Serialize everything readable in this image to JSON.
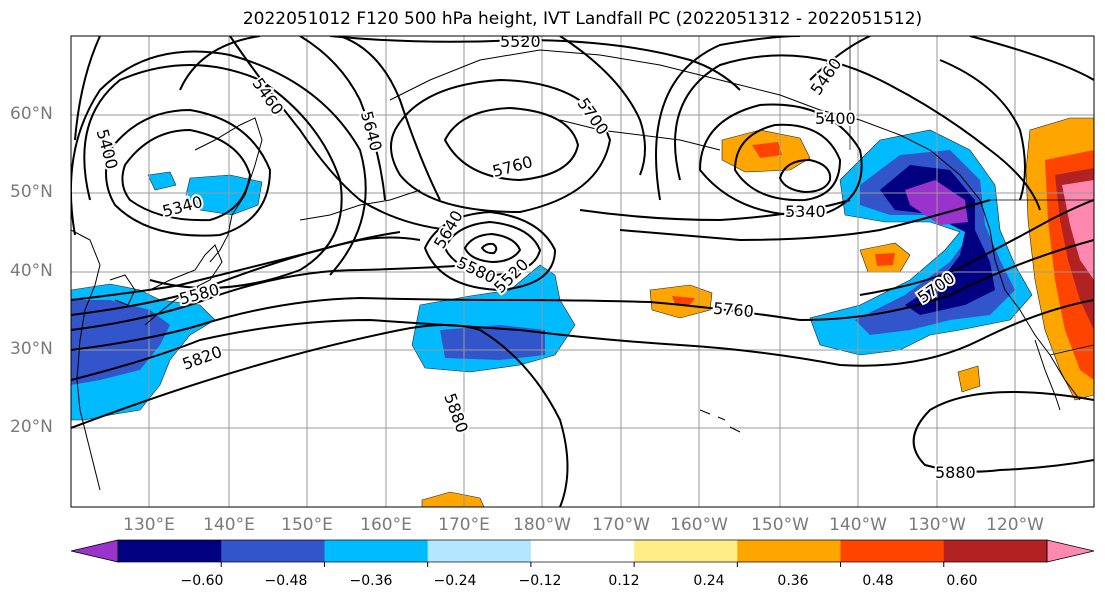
{
  "title": "2022051012 F120 500 hPa height, IVT Landfall PC (2022051312 - 2022051512)",
  "lat_labels": [
    "60°N",
    "50°N",
    "40°N",
    "30°N",
    "20°N"
  ],
  "lon_labels": [
    "130°E",
    "140°E",
    "150°E",
    "160°E",
    "170°E",
    "180°W",
    "170°W",
    "160°W",
    "150°W",
    "140°W",
    "130°W",
    "120°W"
  ],
  "contour_labels": [
    "5520",
    "5460",
    "5640",
    "5400",
    "5700",
    "5760",
    "5340",
    "5460",
    "5400",
    "5340",
    "5640",
    "5580",
    "5520",
    "5580",
    "5820",
    "5760",
    "5700",
    "5880",
    "5880"
  ],
  "colorbar": {
    "ticks": [
      "−0.60",
      "−0.48",
      "−0.36",
      "−0.24",
      "−0.12",
      "0.12",
      "0.24",
      "0.36",
      "0.48",
      "0.60"
    ],
    "colors": [
      "#9933cc",
      "#000080",
      "#3355cc",
      "#00bbff",
      "#b3e6ff",
      "#ffffff",
      "#ffee88",
      "#ffa500",
      "#ff4400",
      "#b22222",
      "#ff88b0"
    ]
  }
}
